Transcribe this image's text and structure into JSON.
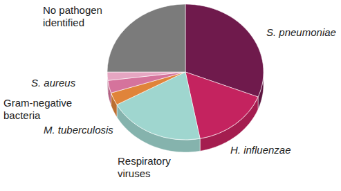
{
  "chart_data": {
    "type": "pie",
    "categories": [
      "S. pneumoniae",
      "H. influenzae",
      "Respiratory viruses",
      "M. tuberculosis",
      "Gram-negative bacteria",
      "S. aureus",
      "No pathogen identified"
    ],
    "values": [
      31,
      16,
      20,
      3,
      3,
      2,
      25
    ],
    "colors": [
      "#6f1a4c",
      "#c4235f",
      "#9fd6cf",
      "#e0843a",
      "#d5739c",
      "#e6a6c2",
      "#7b7b7b"
    ]
  }
}
